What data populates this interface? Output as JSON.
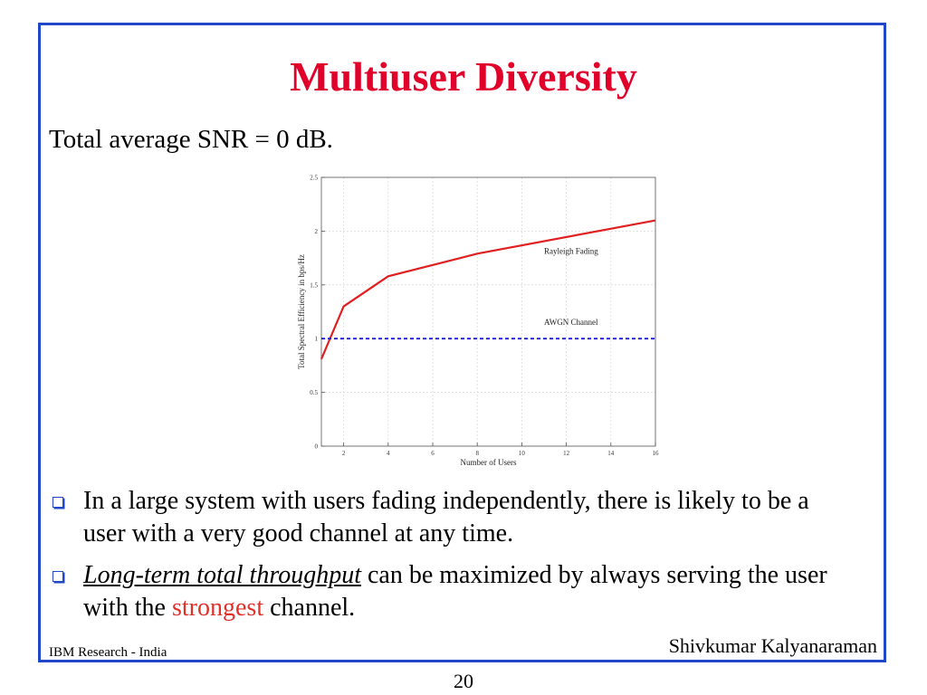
{
  "slide": {
    "title": "Multiuser Diversity",
    "subtitle": "Total average SNR = 0 dB.",
    "bullets": [
      {
        "text": "In a large system with users fading independently, there is likely to be a user with a very good channel at any time."
      },
      {
        "emphasis": "Long-term total throughput",
        "text_before_highlight": " can be maximized by always serving  the user with the ",
        "highlight": "strongest",
        "text_after_highlight": " channel."
      }
    ],
    "footer_left": "IBM Research - India",
    "footer_right": "Shivkumar Kalyanaraman",
    "page_number": "20"
  },
  "colors": {
    "title": "#e0002a",
    "border": "#1f47c8",
    "rayleigh": "#e02020",
    "awgn": "#1a1adc",
    "highlight": "#e0302a"
  },
  "chart_data": {
    "type": "line",
    "xlabel": "Number of Users",
    "ylabel": "Total Spectral Efficiency in bps/Hz",
    "xlim": [
      1,
      16
    ],
    "ylim": [
      0,
      2.5
    ],
    "xticks": [
      2,
      4,
      6,
      8,
      10,
      12,
      14,
      16
    ],
    "yticks": [
      0,
      0.5,
      1,
      1.5,
      2,
      2.5
    ],
    "ytick_labels": [
      "0",
      "0.5",
      "1",
      "1.5",
      "2",
      "2.5"
    ],
    "grid": true,
    "series": [
      {
        "name": "Rayleigh Fading",
        "style": "solid",
        "x": [
          1,
          2,
          4,
          8,
          16
        ],
        "y": [
          0.81,
          1.3,
          1.58,
          1.79,
          2.1
        ]
      },
      {
        "name": "AWGN Channel",
        "style": "dashed",
        "x": [
          1,
          16
        ],
        "y": [
          1.0,
          1.0
        ]
      }
    ]
  }
}
